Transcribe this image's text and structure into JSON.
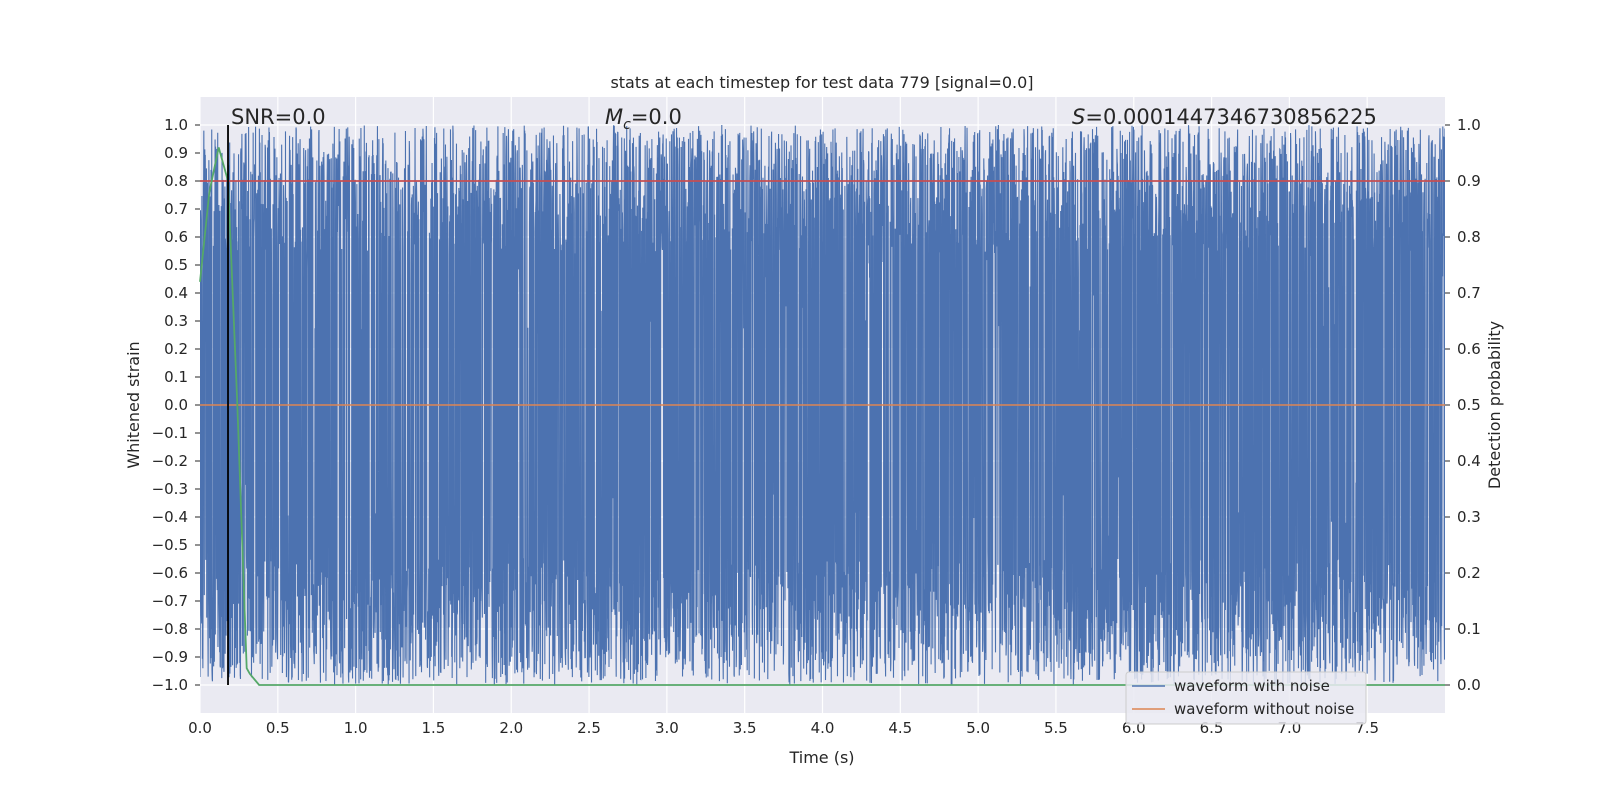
{
  "chart_data": {
    "type": "line",
    "title": "stats at each timestep for test data 779 [signal=0.0]",
    "xlabel": "Time (s)",
    "ylabel": "Whitened strain",
    "y2label": "Detection probability",
    "xlim": [
      0.0,
      8.0
    ],
    "ylim": [
      -1.1,
      1.1
    ],
    "y2lim": [
      -0.05,
      1.05
    ],
    "x_ticks": [
      "0.0",
      "0.5",
      "1.0",
      "1.5",
      "2.0",
      "2.5",
      "3.0",
      "3.5",
      "4.0",
      "4.5",
      "5.0",
      "5.5",
      "6.0",
      "6.5",
      "7.0",
      "7.5"
    ],
    "y_ticks": [
      "1.0",
      "0.9",
      "0.8",
      "0.7",
      "0.6",
      "0.5",
      "0.4",
      "0.3",
      "0.2",
      "0.1",
      "0.0",
      "−0.1",
      "−0.2",
      "−0.3",
      "−0.4",
      "−0.5",
      "−0.6",
      "−0.7",
      "−0.8",
      "−0.9",
      "−1.0"
    ],
    "y2_ticks": [
      "1.0",
      "0.9",
      "0.8",
      "0.7",
      "0.6",
      "0.5",
      "0.4",
      "0.3",
      "0.2",
      "0.1",
      "0.0"
    ],
    "grid": true,
    "annotations": {
      "snr": "SNR=0.0",
      "mc_symbol": "M",
      "mc_sub": "c",
      "mc_value": "=0.0",
      "s_symbol": "S",
      "s_value": "=0.0001447346730856225"
    },
    "vline_x": 0.18,
    "threshold_y2": 0.9,
    "series": [
      {
        "name": "waveform with noise",
        "color": "#4c72b0",
        "description": "dense noise spanning approximately -1.0 to 1.0 throughout 0 to 8 s"
      },
      {
        "name": "waveform without noise",
        "color": "#dd8452",
        "x": [
          0.0,
          8.0
        ],
        "y": [
          0.0,
          0.0
        ]
      },
      {
        "name": "detection probability",
        "color": "#55a868",
        "axis": "y2",
        "x": [
          0.0,
          0.06,
          0.12,
          0.18,
          0.24,
          0.3,
          0.32,
          0.38,
          8.0
        ],
        "y": [
          0.72,
          0.88,
          0.96,
          0.9,
          0.5,
          0.03,
          0.02,
          0.0,
          0.0
        ]
      }
    ],
    "legend": {
      "position": "lower-right",
      "entries": [
        {
          "label": "waveform with noise",
          "color": "#4c72b0"
        },
        {
          "label": "waveform without noise",
          "color": "#dd8452"
        }
      ]
    },
    "colors": {
      "background": "#eaeaf2",
      "grid": "#ffffff",
      "noise": "#4c72b0",
      "clean": "#dd8452",
      "prob": "#55a868",
      "threshold": "#c44e52",
      "vline": "#000000"
    }
  }
}
